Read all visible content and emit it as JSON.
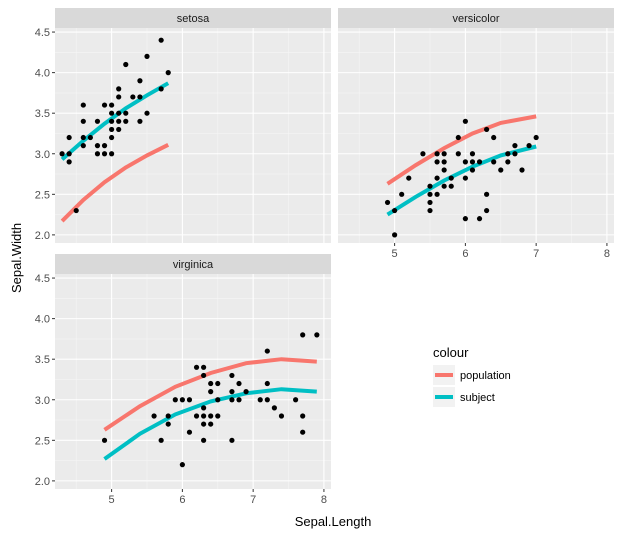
{
  "chart_data": {
    "type": "scatter",
    "title": "",
    "xlabel": "Sepal.Length",
    "ylabel": "Sepal.Width",
    "xlim": [
      4.2,
      8.1
    ],
    "ylim": [
      1.9,
      4.55
    ],
    "x_ticks": [
      5,
      6,
      7,
      8
    ],
    "x_tick_labels": [
      "5",
      "6",
      "7",
      "8"
    ],
    "y_ticks": [
      2.0,
      2.5,
      3.0,
      3.5,
      4.0,
      4.5
    ],
    "y_tick_labels": [
      "2.0",
      "2.5",
      "3.0",
      "3.5",
      "4.0",
      "4.5"
    ],
    "grid": true,
    "legend": {
      "title": "colour",
      "position": "right",
      "entries": [
        {
          "label": "population",
          "color": "#F8766D"
        },
        {
          "label": "subject",
          "color": "#00BFC4"
        }
      ]
    },
    "panels": [
      {
        "name": "setosa",
        "points": [
          [
            4.3,
            3.0
          ],
          [
            4.4,
            2.9
          ],
          [
            4.4,
            3.0
          ],
          [
            4.4,
            3.2
          ],
          [
            4.5,
            2.3
          ],
          [
            4.6,
            3.1
          ],
          [
            4.6,
            3.4
          ],
          [
            4.6,
            3.6
          ],
          [
            4.6,
            3.2
          ],
          [
            4.7,
            3.2
          ],
          [
            4.8,
            3.4
          ],
          [
            4.8,
            3.0
          ],
          [
            4.8,
            3.1
          ],
          [
            4.9,
            3.0
          ],
          [
            4.9,
            3.1
          ],
          [
            4.9,
            3.6
          ],
          [
            5.0,
            3.6
          ],
          [
            5.0,
            3.4
          ],
          [
            5.0,
            3.0
          ],
          [
            5.0,
            3.5
          ],
          [
            5.0,
            3.3
          ],
          [
            5.0,
            3.2
          ],
          [
            5.1,
            3.5
          ],
          [
            5.1,
            3.8
          ],
          [
            5.1,
            3.7
          ],
          [
            5.1,
            3.3
          ],
          [
            5.1,
            3.4
          ],
          [
            5.2,
            3.5
          ],
          [
            5.2,
            3.4
          ],
          [
            5.2,
            4.1
          ],
          [
            5.3,
            3.7
          ],
          [
            5.4,
            3.9
          ],
          [
            5.4,
            3.7
          ],
          [
            5.4,
            3.4
          ],
          [
            5.5,
            4.2
          ],
          [
            5.5,
            3.5
          ],
          [
            5.7,
            4.4
          ],
          [
            5.7,
            3.8
          ],
          [
            5.8,
            4.0
          ]
        ],
        "population": {
          "x": [
            4.3,
            4.6,
            4.9,
            5.2,
            5.5,
            5.8
          ],
          "y": [
            2.17,
            2.43,
            2.65,
            2.83,
            2.98,
            3.11
          ]
        },
        "subject": {
          "x": [
            4.3,
            4.6,
            4.9,
            5.2,
            5.5,
            5.8
          ],
          "y": [
            2.93,
            3.16,
            3.37,
            3.56,
            3.72,
            3.87
          ]
        }
      },
      {
        "name": "versicolor",
        "points": [
          [
            4.9,
            2.4
          ],
          [
            5.0,
            2.0
          ],
          [
            5.0,
            2.3
          ],
          [
            5.1,
            2.5
          ],
          [
            5.2,
            2.7
          ],
          [
            5.4,
            3.0
          ],
          [
            5.5,
            2.3
          ],
          [
            5.5,
            2.4
          ],
          [
            5.5,
            2.5
          ],
          [
            5.5,
            2.6
          ],
          [
            5.6,
            2.9
          ],
          [
            5.6,
            3.0
          ],
          [
            5.6,
            2.7
          ],
          [
            5.6,
            2.5
          ],
          [
            5.7,
            2.8
          ],
          [
            5.7,
            2.6
          ],
          [
            5.7,
            3.0
          ],
          [
            5.7,
            2.9
          ],
          [
            5.8,
            2.7
          ],
          [
            5.8,
            2.6
          ],
          [
            5.9,
            3.0
          ],
          [
            5.9,
            3.2
          ],
          [
            6.0,
            2.2
          ],
          [
            6.0,
            2.9
          ],
          [
            6.0,
            2.7
          ],
          [
            6.0,
            3.4
          ],
          [
            6.1,
            2.9
          ],
          [
            6.1,
            2.8
          ],
          [
            6.1,
            3.0
          ],
          [
            6.2,
            2.2
          ],
          [
            6.2,
            2.9
          ],
          [
            6.3,
            3.3
          ],
          [
            6.3,
            2.5
          ],
          [
            6.3,
            2.3
          ],
          [
            6.4,
            3.2
          ],
          [
            6.4,
            2.9
          ],
          [
            6.5,
            2.8
          ],
          [
            6.6,
            2.9
          ],
          [
            6.6,
            3.0
          ],
          [
            6.7,
            3.1
          ],
          [
            6.7,
            3.0
          ],
          [
            6.8,
            2.8
          ],
          [
            6.9,
            3.1
          ],
          [
            7.0,
            3.2
          ]
        ],
        "population": {
          "x": [
            4.9,
            5.3,
            5.7,
            6.1,
            6.5,
            7.0
          ],
          "y": [
            2.63,
            2.86,
            3.07,
            3.25,
            3.38,
            3.46
          ]
        },
        "subject": {
          "x": [
            4.9,
            5.3,
            5.7,
            6.1,
            6.5,
            7.0
          ],
          "y": [
            2.25,
            2.47,
            2.67,
            2.84,
            2.98,
            3.09
          ]
        }
      },
      {
        "name": "virginica",
        "points": [
          [
            4.9,
            2.5
          ],
          [
            5.6,
            2.8
          ],
          [
            5.7,
            2.5
          ],
          [
            5.8,
            2.7
          ],
          [
            5.8,
            2.8
          ],
          [
            5.9,
            3.0
          ],
          [
            6.0,
            2.2
          ],
          [
            6.0,
            3.0
          ],
          [
            6.1,
            2.6
          ],
          [
            6.1,
            3.0
          ],
          [
            6.2,
            2.8
          ],
          [
            6.2,
            3.4
          ],
          [
            6.3,
            3.3
          ],
          [
            6.3,
            2.9
          ],
          [
            6.3,
            2.7
          ],
          [
            6.3,
            2.8
          ],
          [
            6.3,
            3.4
          ],
          [
            6.3,
            2.5
          ],
          [
            6.4,
            2.7
          ],
          [
            6.4,
            3.2
          ],
          [
            6.4,
            2.8
          ],
          [
            6.4,
            3.1
          ],
          [
            6.5,
            3.0
          ],
          [
            6.5,
            3.2
          ],
          [
            6.5,
            2.8
          ],
          [
            6.7,
            2.5
          ],
          [
            6.7,
            3.3
          ],
          [
            6.7,
            3.1
          ],
          [
            6.7,
            3.0
          ],
          [
            6.8,
            3.0
          ],
          [
            6.8,
            3.2
          ],
          [
            6.9,
            3.1
          ],
          [
            7.1,
            3.0
          ],
          [
            7.2,
            3.6
          ],
          [
            7.2,
            3.2
          ],
          [
            7.2,
            3.0
          ],
          [
            7.3,
            2.9
          ],
          [
            7.4,
            2.8
          ],
          [
            7.6,
            3.0
          ],
          [
            7.7,
            3.8
          ],
          [
            7.7,
            2.6
          ],
          [
            7.7,
            2.8
          ],
          [
            7.9,
            3.8
          ]
        ],
        "population": {
          "x": [
            4.9,
            5.4,
            5.9,
            6.4,
            6.9,
            7.4,
            7.9
          ],
          "y": [
            2.63,
            2.92,
            3.16,
            3.33,
            3.45,
            3.5,
            3.47
          ]
        },
        "subject": {
          "x": [
            4.9,
            5.4,
            5.9,
            6.4,
            6.9,
            7.4,
            7.9
          ],
          "y": [
            2.27,
            2.58,
            2.82,
            2.98,
            3.08,
            3.13,
            3.1
          ]
        }
      }
    ]
  }
}
